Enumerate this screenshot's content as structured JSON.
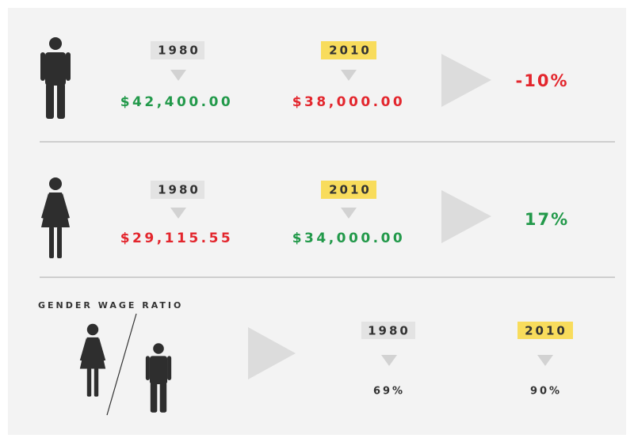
{
  "rows": [
    {
      "year_a": "1980",
      "value_a": "$42,400.00",
      "year_b": "2010",
      "value_b": "$38,000.00",
      "change": "-10%"
    },
    {
      "year_a": "1980",
      "value_a": "$29,115.55",
      "year_b": "2010",
      "value_b": "$34,000.00",
      "change": "17%"
    }
  ],
  "ratio": {
    "label": "GENDER WAGE RATIO",
    "year_a": "1980",
    "value_a": "69%",
    "year_b": "2010",
    "value_b": "90%"
  }
}
